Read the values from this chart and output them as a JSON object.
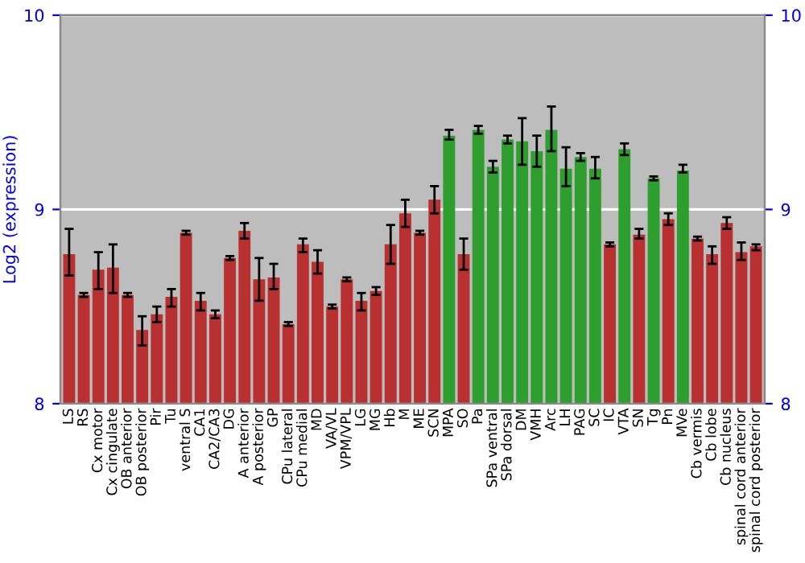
{
  "chart_data": {
    "type": "bar",
    "ylabel": "Log2 (expression)",
    "categories": [
      "LS",
      "RS",
      "Cx motor",
      "Cx cingulate",
      "OB anterior",
      "OB posterior",
      "Pir",
      "Tu",
      "ventral S",
      "CA1",
      "CA2/CA3",
      "DG",
      "A anterior",
      "A posterior",
      "GP",
      "CPu lateral",
      "CPu medial",
      "MD",
      "VA/VL",
      "VPM/VPL",
      "LG",
      "MG",
      "Hb",
      "M",
      "ME",
      "SCN",
      "MPA",
      "SO",
      "Pa",
      "SPa ventral",
      "SPa dorsal",
      "DM",
      "VMH",
      "Arc",
      "LH",
      "PAG",
      "SC",
      "IC",
      "VTA",
      "SN",
      "Tg",
      "Pn",
      "MVe",
      "Cb vermis",
      "Cb lobe",
      "Cb nucleus",
      "spinal cord anterior",
      "spinal cord posterior"
    ],
    "values": [
      8.77,
      8.56,
      8.69,
      8.7,
      8.56,
      8.38,
      8.46,
      8.55,
      8.88,
      8.53,
      8.46,
      8.75,
      8.89,
      8.64,
      8.65,
      8.41,
      8.82,
      8.73,
      8.5,
      8.64,
      8.53,
      8.58,
      8.82,
      8.98,
      8.88,
      9.05,
      9.38,
      8.77,
      9.41,
      9.22,
      9.36,
      9.35,
      9.3,
      9.41,
      9.21,
      9.27,
      9.21,
      8.82,
      9.31,
      8.87,
      9.16,
      8.95,
      9.2,
      8.85,
      8.77,
      8.93,
      8.78,
      8.81
    ],
    "errors": [
      [
        8.66,
        8.9
      ],
      0.01,
      [
        8.59,
        8.78
      ],
      [
        8.57,
        8.82
      ],
      0.01,
      [
        8.3,
        8.45
      ],
      [
        8.42,
        8.5
      ],
      [
        8.5,
        8.59
      ],
      0.01,
      [
        8.48,
        8.57
      ],
      [
        8.44,
        8.48
      ],
      0.01,
      [
        8.85,
        8.93
      ],
      [
        8.53,
        8.75
      ],
      [
        8.59,
        8.72
      ],
      0.01,
      [
        8.78,
        8.85
      ],
      [
        8.67,
        8.79
      ],
      0.01,
      0.01,
      [
        8.48,
        8.57
      ],
      [
        8.56,
        8.6
      ],
      [
        8.72,
        8.92
      ],
      [
        8.91,
        9.05
      ],
      0.01,
      [
        8.98,
        9.12
      ],
      [
        9.36,
        9.41
      ],
      [
        8.69,
        8.85
      ],
      [
        9.39,
        9.43
      ],
      [
        9.19,
        9.25
      ],
      [
        9.34,
        9.38
      ],
      [
        9.23,
        9.47
      ],
      [
        9.22,
        9.38
      ],
      [
        9.3,
        9.53
      ],
      [
        9.12,
        9.32
      ],
      [
        9.25,
        9.29
      ],
      [
        9.16,
        9.27
      ],
      0.01,
      [
        9.28,
        9.34
      ],
      [
        8.85,
        8.9
      ],
      0.01,
      [
        8.92,
        8.98
      ],
      [
        9.19,
        9.23
      ],
      0.01,
      [
        8.72,
        8.81
      ],
      [
        8.9,
        8.96
      ],
      [
        8.74,
        8.83
      ],
      [
        8.79,
        8.82
      ]
    ],
    "colors": [
      "#b83030",
      "#b83030",
      "#b83030",
      "#b83030",
      "#b83030",
      "#b83030",
      "#b83030",
      "#b83030",
      "#b83030",
      "#b83030",
      "#b83030",
      "#b83030",
      "#b83030",
      "#b83030",
      "#b83030",
      "#b83030",
      "#b83030",
      "#b83030",
      "#b83030",
      "#b83030",
      "#b83030",
      "#b83030",
      "#b83030",
      "#b83030",
      "#b83030",
      "#b83030",
      "#2e9e2e",
      "#b83030",
      "#2e9e2e",
      "#2e9e2e",
      "#2e9e2e",
      "#2e9e2e",
      "#2e9e2e",
      "#2e9e2e",
      "#2e9e2e",
      "#2e9e2e",
      "#2e9e2e",
      "#b83030",
      "#2e9e2e",
      "#b83030",
      "#2e9e2e",
      "#b83030",
      "#2e9e2e",
      "#b83030",
      "#b83030",
      "#b83030",
      "#b83030",
      "#b83030"
    ],
    "ylim": [
      8,
      10
    ],
    "yticks": [
      8,
      9,
      10
    ],
    "y2lim": [
      8,
      10
    ],
    "y2ticks": [
      8,
      9,
      10
    ],
    "grid": "y"
  }
}
